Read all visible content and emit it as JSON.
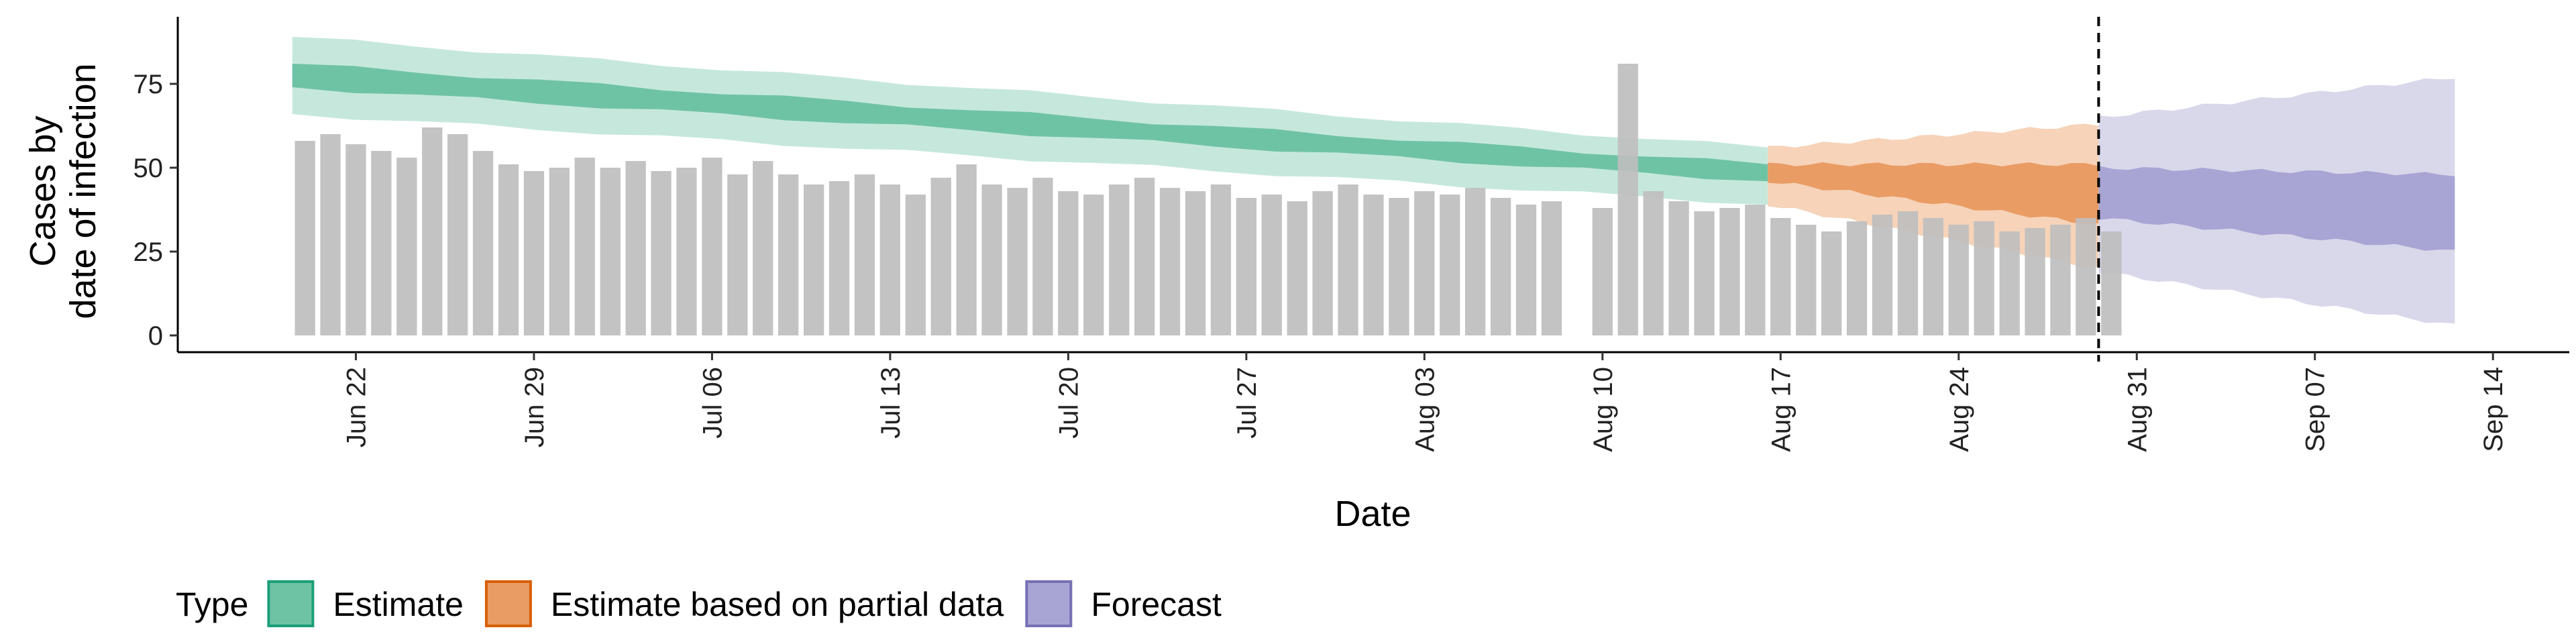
{
  "chart_data": {
    "type": "bar",
    "xlabel": "Date",
    "ylabel_lines": [
      "Cases by",
      "date of infection"
    ],
    "ylim": [
      -5,
      95
    ],
    "xlim": [
      "2020-06-15",
      "2020-09-17"
    ],
    "y_ticks": [
      0,
      25,
      50,
      75
    ],
    "x_ticks": [
      {
        "date": "2020-06-22",
        "label": "Jun 22"
      },
      {
        "date": "2020-06-29",
        "label": "Jun 29"
      },
      {
        "date": "2020-07-06",
        "label": "Jul 06"
      },
      {
        "date": "2020-07-13",
        "label": "Jul 13"
      },
      {
        "date": "2020-07-20",
        "label": "Jul 20"
      },
      {
        "date": "2020-07-27",
        "label": "Jul 27"
      },
      {
        "date": "2020-08-03",
        "label": "Aug 03"
      },
      {
        "date": "2020-08-10",
        "label": "Aug 10"
      },
      {
        "date": "2020-08-17",
        "label": "Aug 17"
      },
      {
        "date": "2020-08-24",
        "label": "Aug 24"
      },
      {
        "date": "2020-08-31",
        "label": "Aug 31"
      },
      {
        "date": "2020-09-07",
        "label": "Sep 07"
      },
      {
        "date": "2020-09-14",
        "label": "Sep 14"
      }
    ],
    "bars": {
      "start_date": "2020-06-20",
      "values": [
        58,
        60,
        57,
        55,
        53,
        62,
        60,
        55,
        51,
        49,
        50,
        53,
        50,
        52,
        49,
        50,
        53,
        48,
        52,
        48,
        45,
        46,
        48,
        45,
        42,
        47,
        51,
        45,
        44,
        47,
        43,
        42,
        45,
        47,
        44,
        43,
        45,
        41,
        42,
        40,
        43,
        45,
        42,
        41,
        43,
        42,
        44,
        41,
        39,
        40,
        null,
        38,
        81,
        43,
        40,
        37,
        38,
        39,
        35,
        33,
        31,
        34,
        36,
        37,
        35,
        33,
        34,
        31,
        32,
        33,
        35,
        31
      ],
      "color": "#bebebe"
    },
    "reference_line_date": "2020-08-29",
    "bands": [
      {
        "name": "Estimate",
        "start_date": "2020-06-20",
        "end_date": "2020-08-16",
        "outer_start": [
          66,
          89
        ],
        "outer_end": [
          39,
          56
        ],
        "inner_start": [
          74,
          81
        ],
        "inner_end": [
          46,
          51
        ],
        "outer_color": "#c6e8dc",
        "inner_color": "#6fc3a5"
      },
      {
        "name": "Estimate based on partial data",
        "start_date": "2020-08-17",
        "end_date": "2020-08-29",
        "outer_start": [
          39,
          56
        ],
        "outer_end": [
          20,
          63
        ],
        "inner_start": [
          46,
          51
        ],
        "inner_end": [
          33,
          51
        ],
        "outer_color": "#f6d3b9",
        "inner_color": "#e99c64"
      },
      {
        "name": "Forecast",
        "start_date": "2020-08-30",
        "end_date": "2020-09-12",
        "outer_start": [
          19,
          65
        ],
        "outer_end": [
          3,
          77
        ],
        "inner_start": [
          35,
          50
        ],
        "inner_end": [
          25,
          48
        ],
        "outer_color": "#d9d8eb",
        "inner_color": "#a8a5d4"
      }
    ],
    "legend": {
      "title": "Type",
      "position": "bottom-left",
      "items": [
        {
          "label": "Estimate",
          "fill": "#6fc3a5",
          "stroke": "#1b9e77"
        },
        {
          "label": "Estimate based on partial data",
          "fill": "#e99c64",
          "stroke": "#d95f02"
        },
        {
          "label": "Forecast",
          "fill": "#a8a5d4",
          "stroke": "#7570b3"
        }
      ]
    }
  }
}
